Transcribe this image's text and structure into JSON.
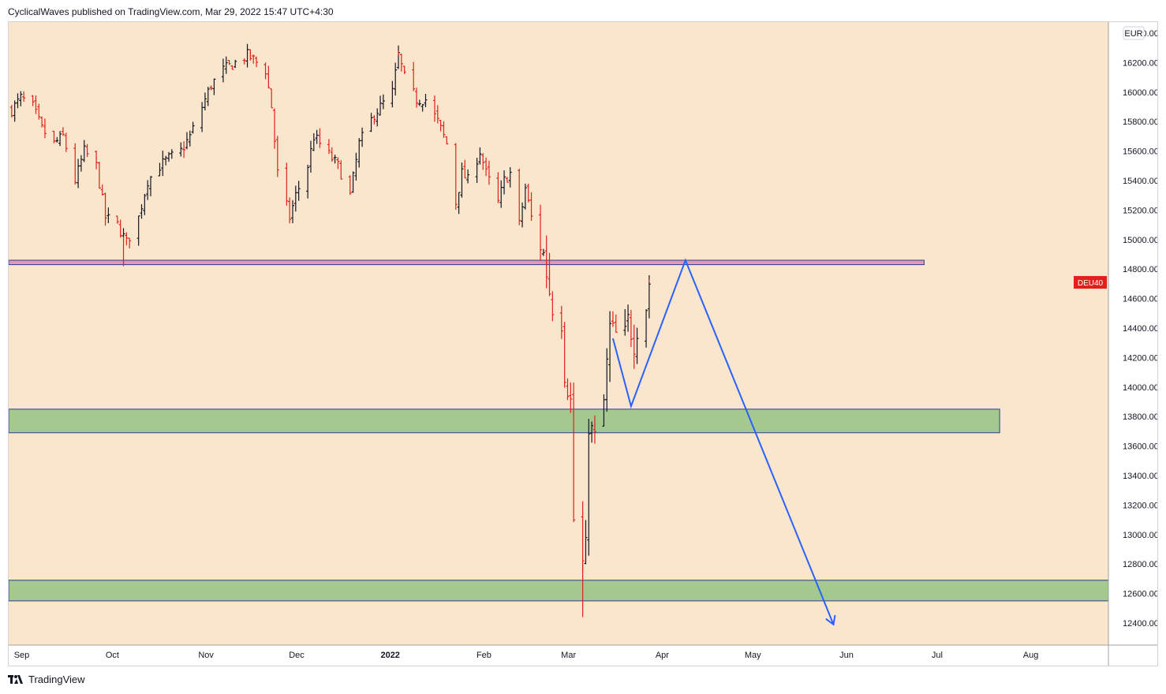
{
  "header": {
    "attribution": "CyclicalWaves published on TradingView.com, Mar 29, 2022 15:47 UTC+4:30"
  },
  "footer": {
    "brand": "TradingView"
  },
  "colors": {
    "background": "#fae5cd",
    "bull_bar": "#131722",
    "bear_bar": "#e0211b",
    "projection": "#2962ff",
    "support_zone": "#a3c98f",
    "resistance_zone": "#e897b0",
    "symbol_badge": "#e0211b"
  },
  "chart_data": {
    "type": "ohlc-bar",
    "currency": "EUR",
    "symbol": "DEU40",
    "last_price": 14710,
    "y_ticks": [
      12400,
      12600,
      12800,
      13000,
      13200,
      13400,
      13600,
      13800,
      14000,
      14200,
      14400,
      14600,
      14800,
      15000,
      15200,
      15400,
      15600,
      15800,
      16000,
      16200,
      16400
    ],
    "y_tick_labels": [
      "12400.00",
      "12600.00",
      "12800.00",
      "13000.00",
      "13200.00",
      "13400.00",
      "13600.00",
      "13800.00",
      "14000.00",
      "14200.00",
      "14400.00",
      "14600.00",
      "14800.00",
      "15000.00",
      "15200.00",
      "15400.00",
      "15600.00",
      "15800.00",
      "16000.00",
      "16200.00",
      "16400.00"
    ],
    "x_ticks": [
      {
        "label": "Sep",
        "date": "2021-09-01"
      },
      {
        "label": "Oct",
        "date": "2021-10-01"
      },
      {
        "label": "Nov",
        "date": "2021-11-01"
      },
      {
        "label": "Dec",
        "date": "2021-12-01"
      },
      {
        "label": "2022",
        "date": "2022-01-01",
        "bold": true
      },
      {
        "label": "Feb",
        "date": "2022-02-01"
      },
      {
        "label": "Mar",
        "date": "2022-03-01"
      },
      {
        "label": "Apr",
        "date": "2022-04-01"
      },
      {
        "label": "May",
        "date": "2022-05-01"
      },
      {
        "label": "Jun",
        "date": "2022-06-01"
      },
      {
        "label": "Jul",
        "date": "2022-07-01"
      },
      {
        "label": "Aug",
        "date": "2022-08-01"
      }
    ],
    "x_range": [
      "2021-08-29",
      "2022-08-28"
    ],
    "y_range": [
      12250,
      16475
    ],
    "price_path": [
      [
        "2021-08-30",
        15880
      ],
      [
        "2021-09-02",
        15960
      ],
      [
        "2021-09-06",
        15900
      ],
      [
        "2021-09-09",
        15750
      ],
      [
        "2021-09-13",
        15650
      ],
      [
        "2021-09-16",
        15700
      ],
      [
        "2021-09-20",
        15400
      ],
      [
        "2021-09-23",
        15600
      ],
      [
        "2021-09-27",
        15500
      ],
      [
        "2021-09-30",
        15150
      ],
      [
        "2021-10-04",
        15100
      ],
      [
        "2021-10-07",
        14980
      ],
      [
        "2021-10-11",
        15150
      ],
      [
        "2021-10-14",
        15400
      ],
      [
        "2021-10-18",
        15500
      ],
      [
        "2021-10-21",
        15550
      ],
      [
        "2021-10-25",
        15600
      ],
      [
        "2021-10-28",
        15700
      ],
      [
        "2021-11-01",
        15900
      ],
      [
        "2021-11-04",
        16050
      ],
      [
        "2021-11-08",
        16150
      ],
      [
        "2021-11-12",
        16200
      ],
      [
        "2021-11-16",
        16250
      ],
      [
        "2021-11-18",
        16220
      ],
      [
        "2021-11-22",
        16150
      ],
      [
        "2021-11-24",
        15900
      ],
      [
        "2021-11-26",
        15450
      ],
      [
        "2021-11-30",
        15150
      ],
      [
        "2021-12-02",
        15300
      ],
      [
        "2021-12-06",
        15500
      ],
      [
        "2021-12-08",
        15700
      ],
      [
        "2021-12-10",
        15650
      ],
      [
        "2021-12-14",
        15550
      ],
      [
        "2021-12-16",
        15500
      ],
      [
        "2021-12-20",
        15300
      ],
      [
        "2021-12-23",
        15650
      ],
      [
        "2021-12-28",
        15850
      ],
      [
        "2022-01-03",
        16000
      ],
      [
        "2022-01-05",
        16250
      ],
      [
        "2022-01-07",
        16100
      ],
      [
        "2022-01-11",
        15950
      ],
      [
        "2022-01-14",
        15950
      ],
      [
        "2022-01-18",
        15800
      ],
      [
        "2022-01-21",
        15650
      ],
      [
        "2022-01-24",
        15250
      ],
      [
        "2022-01-26",
        15450
      ],
      [
        "2022-01-28",
        15400
      ],
      [
        "2022-02-01",
        15600
      ],
      [
        "2022-02-03",
        15450
      ],
      [
        "2022-02-07",
        15250
      ],
      [
        "2022-02-09",
        15400
      ],
      [
        "2022-02-11",
        15450
      ],
      [
        "2022-02-14",
        15100
      ],
      [
        "2022-02-16",
        15350
      ],
      [
        "2022-02-18",
        15150
      ],
      [
        "2022-02-22",
        14900
      ],
      [
        "2022-02-24",
        14650
      ],
      [
        "2022-02-25",
        14550
      ],
      [
        "2022-02-28",
        14450
      ],
      [
        "2022-03-01",
        14100
      ],
      [
        "2022-03-03",
        13900
      ],
      [
        "2022-03-04",
        13100
      ],
      [
        "2022-03-07",
        12800
      ],
      [
        "2022-03-08",
        12900
      ],
      [
        "2022-03-09",
        13750
      ],
      [
        "2022-03-11",
        13650
      ],
      [
        "2022-03-14",
        13900
      ],
      [
        "2022-03-16",
        14400
      ],
      [
        "2022-03-18",
        14350
      ],
      [
        "2022-03-21",
        14350
      ],
      [
        "2022-03-22",
        14450
      ],
      [
        "2022-03-24",
        14300
      ],
      [
        "2022-03-25",
        14400
      ],
      [
        "2022-03-28",
        14550
      ],
      [
        "2022-03-29",
        14710
      ]
    ],
    "key_lows_highs": [
      {
        "date": "2021-10-06",
        "low": 14820
      },
      {
        "date": "2021-11-17",
        "high": 16290
      },
      {
        "date": "2022-01-05",
        "high": 16280
      },
      {
        "date": "2022-02-24",
        "high": 14910
      },
      {
        "date": "2022-03-07",
        "low": 12440
      },
      {
        "date": "2022-03-29",
        "high": 14730
      }
    ],
    "zones": [
      {
        "kind": "resistance",
        "from": "2021-08-29",
        "to": "2022-06-28",
        "low": 14830,
        "high": 14860
      },
      {
        "kind": "support",
        "from": "2021-08-29",
        "to": "2022-07-23",
        "low": 13690,
        "high": 13850
      },
      {
        "kind": "support",
        "from": "2021-08-29",
        "to": "2022-08-28",
        "low": 12550,
        "high": 12690
      }
    ],
    "projection": [
      [
        "2022-03-17",
        14330
      ],
      [
        "2022-03-23",
        13870
      ],
      [
        "2022-04-10",
        14860
      ],
      [
        "2022-05-29",
        12390
      ]
    ]
  }
}
